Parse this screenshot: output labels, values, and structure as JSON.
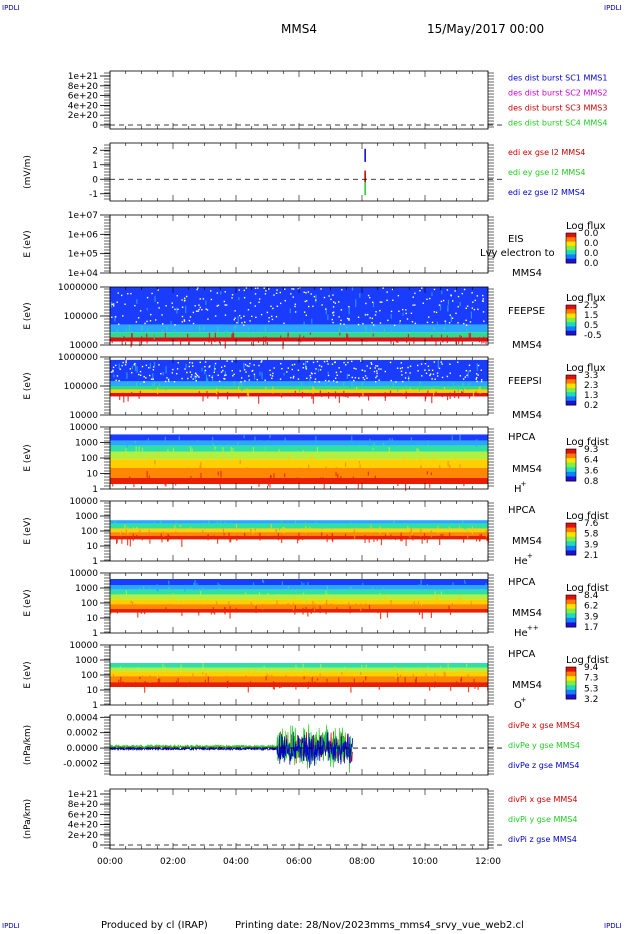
{
  "header": {
    "corner_tl": "IPDLI",
    "corner_tr": "IPDLI",
    "corner_bl": "IPDLI",
    "corner_br": "IPDLI",
    "spacecraft": "MMS4",
    "date": "15/May/2017 00:00"
  },
  "footer": {
    "produced_by": "Produced by cl (IRAP)",
    "printing_date": "Printing date: 28/Nov/2023",
    "script_name": "mms_mms4_srvy_vue_web2.cl"
  },
  "time_axis": {
    "ticks": [
      "00:00",
      "02:00",
      "04:00",
      "06:00",
      "08:00",
      "10:00",
      "12:00"
    ],
    "range_hours": [
      0,
      12
    ]
  },
  "colors": {
    "red": "#cc0000",
    "magenta": "#cc00cc",
    "green": "#22cc22",
    "blue": "#0000cc"
  },
  "chart_data": [
    {
      "type": "line",
      "id": "dist",
      "ylabel": "",
      "yticks": [
        "1e+21",
        "8e+20",
        "6e+20",
        "4e+20",
        "2e+20",
        "0"
      ],
      "zero_line": true,
      "legend": [
        {
          "label": "des dist burst SC1 MMS1",
          "color": "#0000cc"
        },
        {
          "label": "des dist burst SC2 MMS2",
          "color": "#cc00cc"
        },
        {
          "label": "des dist burst SC3 MMS3",
          "color": "#cc0000"
        },
        {
          "label": "des dist burst SC4 MMS4",
          "color": "#22cc22"
        }
      ],
      "series": []
    },
    {
      "type": "line",
      "id": "edi",
      "ylabel": "(mV/m)",
      "yticks": [
        "2",
        "1",
        "0",
        "-1"
      ],
      "ylim": [
        -1.5,
        2.5
      ],
      "zero_line": true,
      "legend": [
        {
          "label": "edi ex gse l2 MMS4",
          "color": "#cc0000"
        },
        {
          "label": "edi ey gse l2 MMS4",
          "color": "#22cc22"
        },
        {
          "label": "edi ez gse l2 MMS4",
          "color": "#0000cc"
        }
      ],
      "series": [
        {
          "color": "#0000cc",
          "x": [
            8.1,
            8.1
          ],
          "y": [
            1.2,
            2.1
          ]
        },
        {
          "color": "#22cc22",
          "x": [
            8.1,
            8.1
          ],
          "y": [
            -1.1,
            0.4
          ]
        },
        {
          "color": "#cc0000",
          "x": [
            8.1,
            8.1
          ],
          "y": [
            -0.2,
            0.6
          ]
        }
      ]
    },
    {
      "type": "heatmap",
      "id": "eis",
      "ylabel": "E (eV)",
      "yticks": [
        "1e+07",
        "1e+06",
        "1e+05",
        "1e+04"
      ],
      "instrument": "EIS",
      "spacecraft": "MMS4",
      "overlay_note": "Lvy electron to",
      "colorbar_title": "Log flux",
      "colorbar_ticks": [
        "0.0",
        "0.0",
        "0.0",
        "0.0"
      ],
      "bands": []
    },
    {
      "type": "heatmap",
      "id": "feepse",
      "ylabel": "E (eV)",
      "yticks": [
        "1000000",
        "100000",
        "10000"
      ],
      "instrument": "FEEPSE",
      "spacecraft": "MMS4",
      "colorbar_title": "Log flux",
      "colorbar_ticks": [
        "2.5",
        "1.5",
        "0.5",
        "-0.5"
      ],
      "bands": [
        {
          "from": 0.0,
          "to": 0.65,
          "color": "#1a3cff"
        },
        {
          "from": 0.65,
          "to": 0.78,
          "color": "#2aa8ff"
        },
        {
          "from": 0.78,
          "to": 0.87,
          "color": "#30d890"
        },
        {
          "from": 0.87,
          "to": 0.94,
          "color": "#e01010"
        }
      ],
      "speckle": "#ffffff"
    },
    {
      "type": "heatmap",
      "id": "feepsi",
      "ylabel": "E (eV)",
      "yticks": [
        "1000000",
        "100000",
        "10000"
      ],
      "instrument": "FEEPSI",
      "spacecraft": "MMS4",
      "colorbar_title": "Log flux",
      "colorbar_ticks": [
        "3.3",
        "2.3",
        "1.3",
        "0.2"
      ],
      "bands": [
        {
          "from": 0.05,
          "to": 0.42,
          "color": "#1a3cff"
        },
        {
          "from": 0.42,
          "to": 0.5,
          "color": "#2aa8ff"
        },
        {
          "from": 0.5,
          "to": 0.56,
          "color": "#30d890"
        },
        {
          "from": 0.56,
          "to": 0.62,
          "color": "#ffd000"
        },
        {
          "from": 0.62,
          "to": 0.68,
          "color": "#e01010"
        }
      ],
      "speckle": "#ffffff"
    },
    {
      "type": "heatmap",
      "id": "hpca_h",
      "ylabel": "E (eV)",
      "yticks": [
        "10000",
        "1000",
        "100",
        "10",
        "1"
      ],
      "instrument": "HPCA",
      "spacecraft": "MMS4",
      "species": "H",
      "charge": "+",
      "colorbar_title": "Log fdist",
      "colorbar_ticks": [
        "9.3",
        "6.4",
        "3.6",
        "0.8"
      ],
      "bands": [
        {
          "from": 0.12,
          "to": 0.22,
          "color": "#1a3cff"
        },
        {
          "from": 0.22,
          "to": 0.3,
          "color": "#2aa8ff"
        },
        {
          "from": 0.3,
          "to": 0.4,
          "color": "#30e0a0"
        },
        {
          "from": 0.4,
          "to": 0.52,
          "color": "#b0f040"
        },
        {
          "from": 0.52,
          "to": 0.66,
          "color": "#ffd000"
        },
        {
          "from": 0.66,
          "to": 0.82,
          "color": "#ff8800"
        },
        {
          "from": 0.82,
          "to": 0.92,
          "color": "#e82000"
        }
      ]
    },
    {
      "type": "heatmap",
      "id": "hpca_he",
      "ylabel": "E (eV)",
      "yticks": [
        "10000",
        "1000",
        "100",
        "10",
        "1"
      ],
      "instrument": "HPCA",
      "spacecraft": "MMS4",
      "species": "He",
      "charge": "+",
      "colorbar_title": "Log fdist",
      "colorbar_ticks": [
        "7.6",
        "5.8",
        "3.9",
        "2.1"
      ],
      "bands": [
        {
          "from": 0.32,
          "to": 0.38,
          "color": "#2aa8ff"
        },
        {
          "from": 0.38,
          "to": 0.46,
          "color": "#30e0a0"
        },
        {
          "from": 0.46,
          "to": 0.52,
          "color": "#ffd000"
        },
        {
          "from": 0.52,
          "to": 0.58,
          "color": "#ff8800"
        },
        {
          "from": 0.58,
          "to": 0.64,
          "color": "#e82000"
        }
      ]
    },
    {
      "type": "heatmap",
      "id": "hpca_hepp",
      "ylabel": "E (eV)",
      "yticks": [
        "10000",
        "1000",
        "100",
        "10",
        "1"
      ],
      "instrument": "HPCA",
      "spacecraft": "MMS4",
      "species": "He",
      "charge": "++",
      "colorbar_title": "Log fdist",
      "colorbar_ticks": [
        "8.4",
        "6.2",
        "3.9",
        "1.7"
      ],
      "bands": [
        {
          "from": 0.1,
          "to": 0.2,
          "color": "#1a3cff"
        },
        {
          "from": 0.2,
          "to": 0.28,
          "color": "#2aa8ff"
        },
        {
          "from": 0.28,
          "to": 0.36,
          "color": "#30e0a0"
        },
        {
          "from": 0.36,
          "to": 0.44,
          "color": "#b0f040"
        },
        {
          "from": 0.44,
          "to": 0.52,
          "color": "#ffd000"
        },
        {
          "from": 0.52,
          "to": 0.6,
          "color": "#ff8800"
        },
        {
          "from": 0.6,
          "to": 0.66,
          "color": "#e82000"
        }
      ]
    },
    {
      "type": "heatmap",
      "id": "hpca_o",
      "ylabel": "E (eV)",
      "yticks": [
        "10000",
        "1000",
        "100",
        "10",
        "1"
      ],
      "instrument": "HPCA",
      "spacecraft": "MMS4",
      "species": "O",
      "charge": "+",
      "colorbar_title": "Log fdist",
      "colorbar_ticks": [
        "9.4",
        "7.3",
        "5.3",
        "3.2"
      ],
      "bands": [
        {
          "from": 0.3,
          "to": 0.38,
          "color": "#30e0a0"
        },
        {
          "from": 0.38,
          "to": 0.44,
          "color": "#b0f040"
        },
        {
          "from": 0.44,
          "to": 0.52,
          "color": "#ffd000"
        },
        {
          "from": 0.52,
          "to": 0.62,
          "color": "#ff8800"
        },
        {
          "from": 0.62,
          "to": 0.7,
          "color": "#e82000"
        }
      ]
    },
    {
      "type": "line",
      "id": "divpe",
      "ylabel": "(nPa/km)",
      "yticks": [
        "0.0004",
        "0.0002",
        "0.0000",
        "-0.0002"
      ],
      "ylim": [
        -0.00035,
        0.00043
      ],
      "zero_line": true,
      "legend": [
        {
          "label": "divPe x gse MMS4",
          "color": "#cc0000"
        },
        {
          "label": "divPe y gse MMS4",
          "color": "#22cc22"
        },
        {
          "label": "divPe z gse MMS4",
          "color": "#0000cc"
        }
      ],
      "series": [
        {
          "name": "divPe x gse MMS4",
          "color": "#cc0000",
          "x_range": [
            0,
            7.7
          ],
          "base": 1e-05,
          "amp_quiet": 1.5e-05,
          "amp_active": 0.00016,
          "active_from": 5.3
        },
        {
          "name": "divPe y gse MMS4",
          "color": "#22cc22",
          "x_range": [
            0,
            7.7
          ],
          "base": 2e-05,
          "amp_quiet": 2e-05,
          "amp_active": 0.00025,
          "active_from": 5.3
        },
        {
          "name": "divPe z gse MMS4",
          "color": "#0000cc",
          "x_range": [
            0,
            7.7
          ],
          "base": -1e-05,
          "amp_quiet": 1.5e-05,
          "amp_active": 0.00018,
          "active_from": 5.3
        }
      ]
    },
    {
      "type": "line",
      "id": "divpi",
      "ylabel": "(nPa/km)",
      "yticks": [
        "1e+21",
        "8e+20",
        "6e+20",
        "4e+20",
        "2e+20",
        "0"
      ],
      "zero_line": true,
      "legend": [
        {
          "label": "divPi x gse MMS4",
          "color": "#cc0000"
        },
        {
          "label": "divPi y gse MMS4",
          "color": "#22cc22"
        },
        {
          "label": "divPi z gse MMS4",
          "color": "#0000cc"
        }
      ],
      "series": []
    }
  ]
}
